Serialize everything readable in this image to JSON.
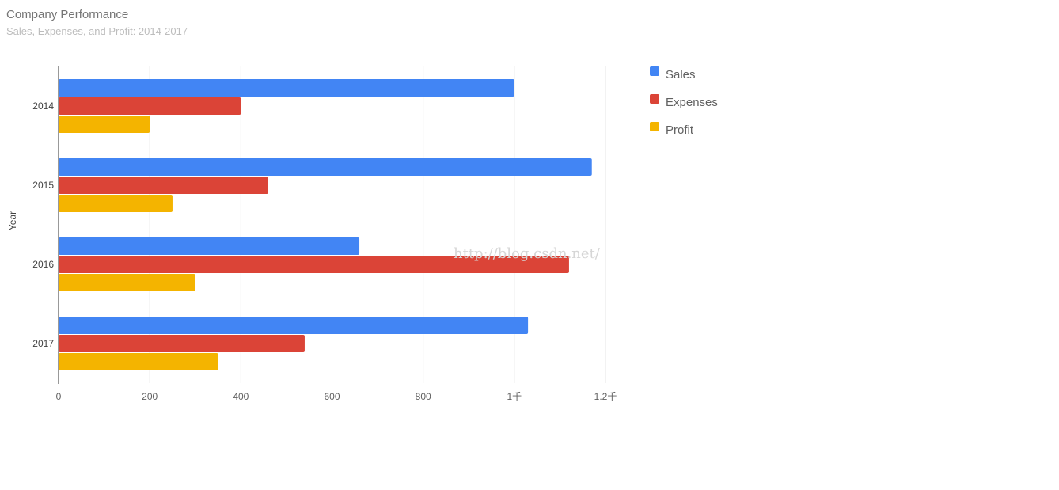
{
  "chart_data": {
    "type": "bar",
    "orientation": "horizontal",
    "title": "Company Performance",
    "subtitle": "Sales, Expenses, and Profit: 2014-2017",
    "ylabel": "Year",
    "xlabel": "",
    "categories": [
      "2014",
      "2015",
      "2016",
      "2017"
    ],
    "series": [
      {
        "name": "Sales",
        "color": "#4285f4",
        "values": [
          1000,
          1170,
          660,
          1030
        ]
      },
      {
        "name": "Expenses",
        "color": "#db4437",
        "values": [
          400,
          460,
          1120,
          540
        ]
      },
      {
        "name": "Profit",
        "color": "#f4b400",
        "values": [
          200,
          250,
          300,
          350
        ]
      }
    ],
    "xlim": [
      0,
      1200
    ],
    "xticks": [
      0,
      200,
      400,
      600,
      800,
      1000,
      1200
    ],
    "xtick_labels": [
      "0",
      "200",
      "400",
      "600",
      "800",
      "1千",
      "1.2千"
    ],
    "grid": true,
    "legend_position": "right"
  },
  "watermark": "http://blog.csdn.net/"
}
